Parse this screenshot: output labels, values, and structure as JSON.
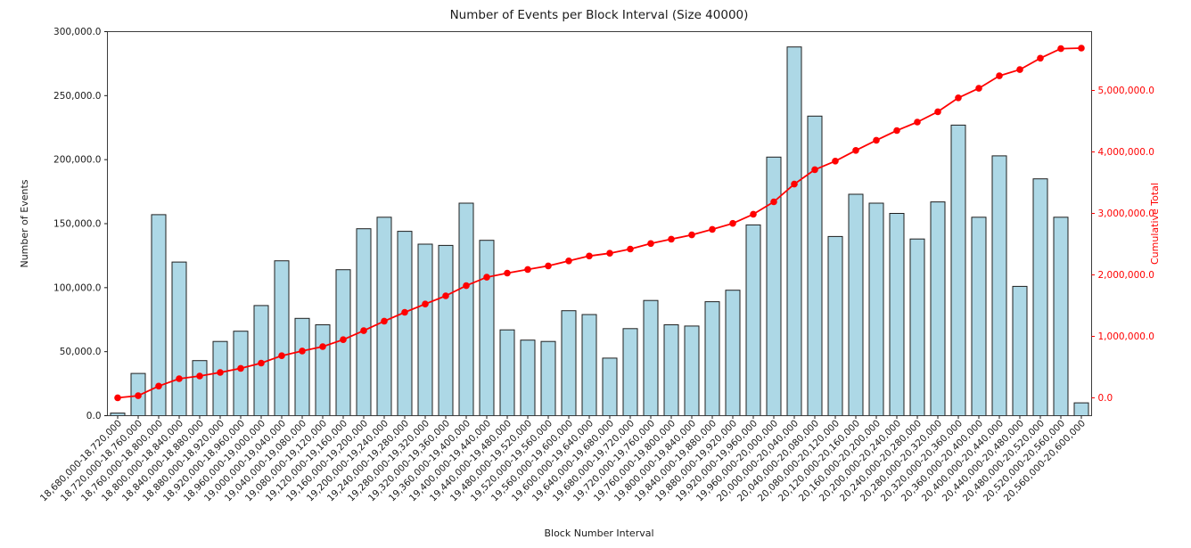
{
  "chart_data": {
    "type": "bar",
    "combo": "bar+line",
    "title": "Number of Events per Block Interval (Size 40000)",
    "xlabel": "Block Number Interval",
    "ylabel": "Number of Events",
    "ylabel_right": "Cumulative Total",
    "grid": false,
    "legend": "none",
    "background": "#ffffff",
    "categories": [
      "18,680,000-18,720,000",
      "18,720,000-18,760,000",
      "18,760,000-18,800,000",
      "18,800,000-18,840,000",
      "18,840,000-18,880,000",
      "18,880,000-18,920,000",
      "18,920,000-18,960,000",
      "18,960,000-19,000,000",
      "19,000,000-19,040,000",
      "19,040,000-19,080,000",
      "19,080,000-19,120,000",
      "19,120,000-19,160,000",
      "19,160,000-19,200,000",
      "19,200,000-19,240,000",
      "19,240,000-19,280,000",
      "19,280,000-19,320,000",
      "19,320,000-19,360,000",
      "19,360,000-19,400,000",
      "19,400,000-19,440,000",
      "19,440,000-19,480,000",
      "19,480,000-19,520,000",
      "19,520,000-19,560,000",
      "19,560,000-19,600,000",
      "19,600,000-19,640,000",
      "19,640,000-19,680,000",
      "19,680,000-19,720,000",
      "19,720,000-19,760,000",
      "19,760,000-19,800,000",
      "19,800,000-19,840,000",
      "19,840,000-19,880,000",
      "19,880,000-19,920,000",
      "19,920,000-19,960,000",
      "19,960,000-20,000,000",
      "20,000,000-20,040,000",
      "20,040,000-20,080,000",
      "20,080,000-20,120,000",
      "20,120,000-20,160,000",
      "20,160,000-20,200,000",
      "20,200,000-20,240,000",
      "20,240,000-20,280,000",
      "20,280,000-20,320,000",
      "20,320,000-20,360,000",
      "20,360,000-20,400,000",
      "20,400,000-20,440,000",
      "20,440,000-20,480,000",
      "20,480,000-20,520,000",
      "20,520,000-20,560,000",
      "20,560,000-20,600,000"
    ],
    "series": [
      {
        "name": "Number of Events",
        "chart_type": "bar",
        "axis": "left",
        "color": "#add8e6",
        "edge_color": "#1f1f1f",
        "values": [
          2000,
          33000,
          157000,
          120000,
          43000,
          58000,
          66000,
          86000,
          121000,
          76000,
          71000,
          114000,
          146000,
          155000,
          144000,
          134000,
          133000,
          166000,
          137000,
          67000,
          59000,
          58000,
          82000,
          79000,
          45000,
          68000,
          90000,
          71000,
          70000,
          89000,
          98000,
          149000,
          202000,
          288000,
          234000,
          140000,
          173000,
          166000,
          158000,
          138000,
          167000,
          227000,
          155000,
          203000,
          101000,
          185000,
          155000,
          10000
        ]
      },
      {
        "name": "Cumulative Total",
        "chart_type": "line",
        "axis": "right",
        "color": "#ff0000",
        "marker": "circle",
        "values": [
          2000,
          35000,
          192000,
          312000,
          355000,
          413000,
          479000,
          565000,
          686000,
          762000,
          833000,
          947000,
          1093000,
          1248000,
          1392000,
          1526000,
          1659000,
          1825000,
          1962000,
          2029000,
          2088000,
          2146000,
          2228000,
          2307000,
          2352000,
          2420000,
          2510000,
          2581000,
          2651000,
          2740000,
          2838000,
          2987000,
          3189000,
          3477000,
          3711000,
          3851000,
          4024000,
          4190000,
          4348000,
          4486000,
          4653000,
          4880000,
          5035000,
          5238000,
          5339000,
          5524000,
          5679000,
          5689000
        ]
      }
    ],
    "left_axis": {
      "label": "Number of Events",
      "lim": [
        0,
        300000
      ],
      "tick_values": [
        0,
        50000,
        100000,
        150000,
        200000,
        250000,
        300000
      ],
      "tick_labels": [
        "0.0",
        "50,000.0",
        "100,000.0",
        "150,000.0",
        "200,000.0",
        "250,000.0",
        "300,000.0"
      ],
      "color": "#1a1a1a"
    },
    "right_axis": {
      "label": "Cumulative Total",
      "tick_values": [
        0,
        1000000,
        2000000,
        3000000,
        4000000,
        5000000
      ],
      "tick_labels": [
        "0.0",
        "1,000,000.0",
        "2,000,000.0",
        "3,000,000.0",
        "4,000,000.0",
        "5,000,000.0"
      ],
      "color": "#ff0000"
    }
  }
}
